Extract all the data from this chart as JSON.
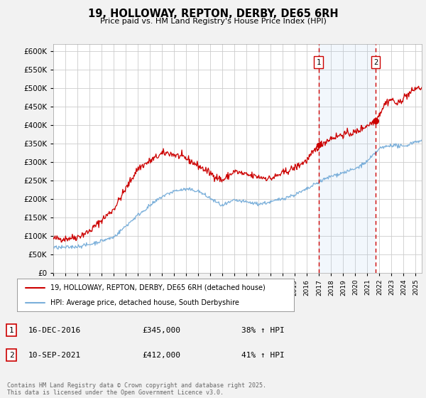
{
  "title": "19, HOLLOWAY, REPTON, DERBY, DE65 6RH",
  "subtitle": "Price paid vs. HM Land Registry's House Price Index (HPI)",
  "ylim": [
    0,
    620000
  ],
  "ytick_values": [
    0,
    50000,
    100000,
    150000,
    200000,
    250000,
    300000,
    350000,
    400000,
    450000,
    500000,
    550000,
    600000
  ],
  "xlim_start": 1995.0,
  "xlim_end": 2025.5,
  "red_line_color": "#cc0000",
  "blue_line_color": "#7aafda",
  "marker1_date": 2016.96,
  "marker1_value": 345000,
  "marker1_label": "1",
  "marker2_date": 2021.69,
  "marker2_value": 412000,
  "marker2_label": "2",
  "legend_entry1": "19, HOLLOWAY, REPTON, DERBY, DE65 6RH (detached house)",
  "legend_entry2": "HPI: Average price, detached house, South Derbyshire",
  "footer": "Contains HM Land Registry data © Crown copyright and database right 2025.\nThis data is licensed under the Open Government Licence v3.0.",
  "background_color": "#f2f2f2",
  "plot_bg_color": "#ffffff",
  "grid_color": "#cccccc",
  "dashed_line_color": "#cc0000",
  "shade_color": "#ddeeff"
}
